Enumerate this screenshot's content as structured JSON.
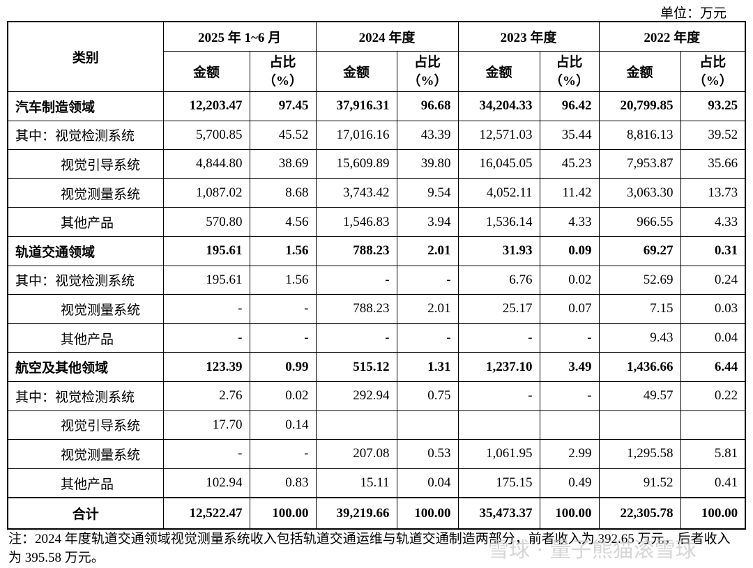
{
  "unit": "单位：万元",
  "header": {
    "category": "类别",
    "periods": [
      {
        "label": "2025 年 1~6 月",
        "columns": [
          "金额",
          "占比\n（%）"
        ]
      },
      {
        "label": "2024 年度",
        "columns": [
          "金额",
          "占比\n（%）"
        ]
      },
      {
        "label": "2023 年度",
        "columns": [
          "金额",
          "占比\n（%）"
        ]
      },
      {
        "label": "2022 年度",
        "columns": [
          "金额",
          "占比\n（%）"
        ]
      }
    ]
  },
  "rows": [
    {
      "label": "汽车制造领域",
      "cells": [
        "12,203.47",
        "97.45",
        "37,916.31",
        "96.68",
        "34,204.33",
        "96.42",
        "20,799.85",
        "93.25"
      ]
    },
    {
      "label": "其中：视觉检测系统",
      "cells": [
        "5,700.85",
        "45.52",
        "17,016.16",
        "43.39",
        "12,571.03",
        "35.44",
        "8,816.13",
        "39.52"
      ]
    },
    {
      "label": "视觉引导系统",
      "cells": [
        "4,844.80",
        "38.69",
        "15,609.89",
        "39.80",
        "16,045.05",
        "45.23",
        "7,953.87",
        "35.66"
      ]
    },
    {
      "label": "视觉测量系统",
      "cells": [
        "1,087.02",
        "8.68",
        "3,743.42",
        "9.54",
        "4,052.11",
        "11.42",
        "3,063.30",
        "13.73"
      ]
    },
    {
      "label": "其他产品",
      "cells": [
        "570.80",
        "4.56",
        "1,546.83",
        "3.94",
        "1,536.14",
        "4.33",
        "966.55",
        "4.33"
      ]
    },
    {
      "label": "轨道交通领域",
      "cells": [
        "195.61",
        "1.56",
        "788.23",
        "2.01",
        "31.93",
        "0.09",
        "69.27",
        "0.31"
      ]
    },
    {
      "label": "其中：视觉检测系统",
      "cells": [
        "195.61",
        "1.56",
        "-",
        "-",
        "6.76",
        "0.02",
        "52.69",
        "0.24"
      ]
    },
    {
      "label": "视觉测量系统",
      "cells": [
        "-",
        "-",
        "788.23",
        "2.01",
        "25.17",
        "0.07",
        "7.15",
        "0.03"
      ]
    },
    {
      "label": "其他产品",
      "cells": [
        "-",
        "-",
        "-",
        "-",
        "-",
        "-",
        "9.43",
        "0.04"
      ]
    },
    {
      "label": "航空及其他领域",
      "cells": [
        "123.39",
        "0.99",
        "515.12",
        "1.31",
        "1,237.10",
        "3.49",
        "1,436.66",
        "6.44"
      ]
    },
    {
      "label": "其中：视觉检测系统",
      "cells": [
        "2.76",
        "0.02",
        "292.94",
        "0.75",
        "-",
        "-",
        "49.57",
        "0.22"
      ]
    },
    {
      "label": "视觉引导系统",
      "cells": [
        "17.70",
        "0.14",
        null,
        null,
        null,
        null,
        null,
        null
      ]
    },
    {
      "label": "视觉测量系统",
      "cells": [
        "-",
        "-",
        "207.08",
        "0.53",
        "1,061.95",
        "2.99",
        "1,295.58",
        "5.81"
      ]
    },
    {
      "label": "其他产品",
      "cells": [
        "102.94",
        "0.83",
        "15.11",
        "0.04",
        "175.15",
        "0.49",
        "91.52",
        "0.41"
      ]
    }
  ],
  "total": {
    "label": "合计",
    "cells": [
      "12,522.47",
      "100.00",
      "39,219.66",
      "100.00",
      "35,473.37",
      "100.00",
      "22,305.78",
      "100.00"
    ]
  },
  "note": "注：2024 年度轨道交通领域视觉测量系统收入包括轨道交通运维与轨道交通制造两部分，前者收入为 392.65 万元，后者收入为 395.58 万元。",
  "watermark": "雪球 · 量子熊猫滚雪球"
}
